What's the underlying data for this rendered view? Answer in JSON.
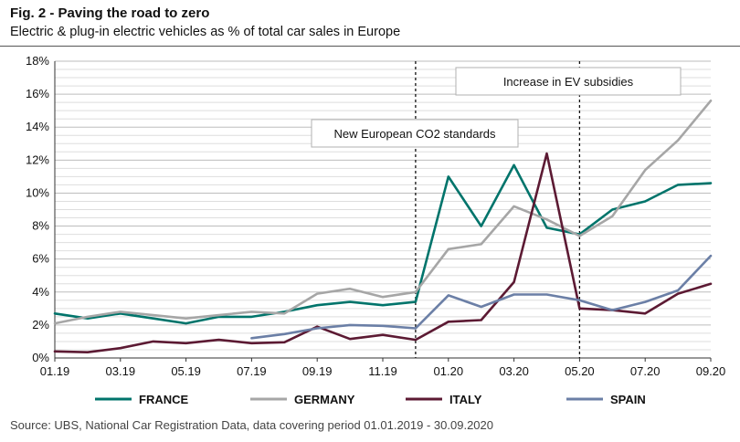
{
  "figure": {
    "title": "Fig. 2 - Paving the road to zero",
    "subtitle": "Electric & plug-in electric vehicles as % of total car sales in Europe",
    "source": "Source: UBS, National Car Registration Data, data covering period 01.01.2019 - 30.09.2020"
  },
  "chart_data": {
    "type": "line",
    "title": "Fig. 2 - Paving the road to zero",
    "subtitle": "Electric & plug-in electric vehicles as % of total car sales in Europe",
    "x": [
      "01.19",
      "02.19",
      "03.19",
      "04.19",
      "05.19",
      "06.19",
      "07.19",
      "08.19",
      "09.19",
      "10.19",
      "11.19",
      "12.19",
      "01.20",
      "02.20",
      "03.20",
      "04.20",
      "05.20",
      "06.20",
      "07.20",
      "08.20",
      "09.20"
    ],
    "x_tick_labels": [
      "01.19",
      "03.19",
      "05.19",
      "07.19",
      "09.19",
      "11.19",
      "01.20",
      "03.20",
      "05.20",
      "07.20",
      "09.20"
    ],
    "y_tick_labels": [
      "0%",
      "2%",
      "4%",
      "6%",
      "8%",
      "10%",
      "12%",
      "14%",
      "16%",
      "18%"
    ],
    "ylim": [
      0,
      18
    ],
    "y_unit": "%",
    "grid": true,
    "legend_position": "bottom",
    "series": [
      {
        "name": "FRANCE",
        "color": "#00746B",
        "values": [
          2.7,
          2.4,
          2.7,
          2.4,
          2.1,
          2.5,
          2.5,
          2.8,
          3.2,
          3.4,
          3.2,
          3.4,
          11.0,
          8.0,
          11.7,
          7.9,
          7.5,
          9.0,
          9.5,
          10.5,
          10.6
        ]
      },
      {
        "name": "GERMANY",
        "color": "#A6A6A6",
        "values": [
          2.1,
          2.5,
          2.8,
          2.6,
          2.4,
          2.6,
          2.8,
          2.7,
          3.9,
          4.2,
          3.7,
          4.0,
          6.6,
          6.9,
          9.2,
          8.4,
          7.4,
          8.6,
          11.4,
          13.2,
          15.6
        ]
      },
      {
        "name": "ITALY",
        "color": "#5C1A33",
        "values": [
          0.4,
          0.35,
          0.6,
          1.0,
          0.9,
          1.1,
          0.9,
          0.95,
          1.9,
          1.15,
          1.4,
          1.1,
          2.2,
          2.3,
          4.6,
          12.4,
          3.0,
          2.9,
          2.7,
          3.9,
          4.5
        ]
      },
      {
        "name": "SPAIN",
        "color": "#6B7FA6",
        "values": [
          null,
          null,
          null,
          null,
          null,
          null,
          1.2,
          1.45,
          1.8,
          2.0,
          1.95,
          1.8,
          3.8,
          3.1,
          3.85,
          3.85,
          3.5,
          2.9,
          3.4,
          4.1,
          6.2
        ]
      }
    ],
    "events": [
      {
        "label": "New European CO2 standards",
        "x": "12.19"
      },
      {
        "label": "Increase in EV subsidies",
        "x": "05.20"
      }
    ]
  }
}
